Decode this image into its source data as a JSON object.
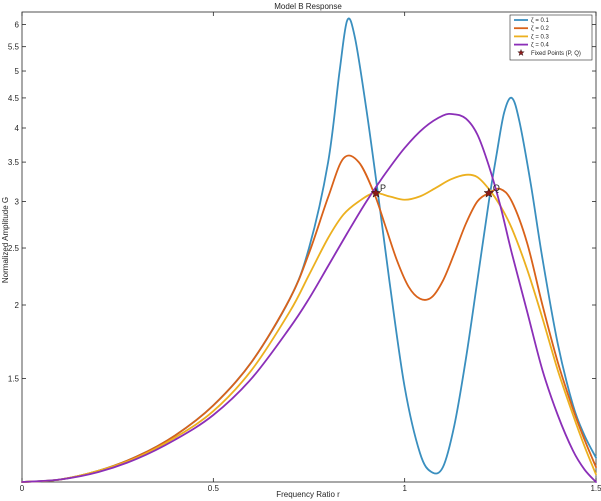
{
  "chart_data": {
    "type": "line",
    "title": "Model B Response",
    "xlabel": "Frequency Ratio r",
    "ylabel": "Normalized Amplitude G",
    "xlim": [
      0,
      1.5
    ],
    "ylim": [
      1,
      6.3
    ],
    "y_scale": "log",
    "x_ticks": [
      0,
      0.5,
      1,
      1.5
    ],
    "x_tick_labels": [
      "0",
      "0.5",
      "1",
      "1.5"
    ],
    "y_ticks": [
      1.5,
      2,
      2.5,
      3,
      3.5,
      4,
      4.5,
      5,
      5.5,
      6
    ],
    "y_tick_labels": [
      "1.5",
      "2",
      "2.5",
      "3",
      "3.5",
      "4",
      "4.5",
      "5",
      "5.5",
      "6"
    ],
    "grid": false,
    "legend_position": "top-right",
    "series": [
      {
        "name": "ζ = 0.1",
        "color": "#3a8fbf",
        "x": [
          0,
          0.1,
          0.2,
          0.3,
          0.4,
          0.5,
          0.6,
          0.7,
          0.75,
          0.8,
          0.83,
          0.85,
          0.87,
          0.9,
          0.93,
          0.96,
          1.0,
          1.04,
          1.07,
          1.1,
          1.13,
          1.16,
          1.19,
          1.22,
          1.24,
          1.26,
          1.28,
          1.3,
          1.33,
          1.36,
          1.4,
          1.44,
          1.47,
          1.5
        ],
        "y": [
          1.0,
          1.01,
          1.045,
          1.105,
          1.2,
          1.35,
          1.6,
          2.05,
          2.5,
          3.5,
          5.0,
          6.1,
          5.7,
          4.3,
          3.1,
          2.2,
          1.45,
          1.12,
          1.04,
          1.06,
          1.25,
          1.62,
          2.2,
          3.0,
          3.6,
          4.25,
          4.5,
          4.1,
          3.2,
          2.4,
          1.72,
          1.35,
          1.2,
          1.1
        ]
      },
      {
        "name": "ζ = 0.2",
        "color": "#d9621a",
        "x": [
          0,
          0.1,
          0.2,
          0.3,
          0.4,
          0.5,
          0.6,
          0.7,
          0.75,
          0.8,
          0.84,
          0.88,
          0.92,
          0.95,
          0.98,
          1.01,
          1.04,
          1.07,
          1.1,
          1.13,
          1.16,
          1.19,
          1.22,
          1.25,
          1.28,
          1.32,
          1.36,
          1.4,
          1.44,
          1.47,
          1.5
        ],
        "y": [
          1.0,
          1.01,
          1.045,
          1.105,
          1.2,
          1.35,
          1.6,
          2.05,
          2.45,
          3.05,
          3.55,
          3.5,
          3.1,
          2.72,
          2.38,
          2.15,
          2.05,
          2.06,
          2.2,
          2.45,
          2.75,
          3.0,
          3.1,
          3.15,
          3.0,
          2.55,
          2.0,
          1.6,
          1.33,
          1.18,
          1.06
        ]
      },
      {
        "name": "ζ = 0.3",
        "color": "#ecb01f",
        "x": [
          0,
          0.1,
          0.2,
          0.3,
          0.4,
          0.5,
          0.6,
          0.7,
          0.75,
          0.8,
          0.84,
          0.88,
          0.92,
          0.96,
          1.0,
          1.04,
          1.08,
          1.12,
          1.16,
          1.19,
          1.22,
          1.25,
          1.28,
          1.32,
          1.36,
          1.4,
          1.44,
          1.47,
          1.5
        ],
        "y": [
          1.0,
          1.01,
          1.045,
          1.1,
          1.19,
          1.32,
          1.55,
          1.95,
          2.25,
          2.6,
          2.85,
          3.0,
          3.1,
          3.06,
          3.02,
          3.06,
          3.16,
          3.27,
          3.33,
          3.3,
          3.15,
          2.95,
          2.7,
          2.3,
          1.9,
          1.55,
          1.3,
          1.15,
          1.03
        ]
      },
      {
        "name": "ζ = 0.4",
        "color": "#8b2fb8",
        "x": [
          0,
          0.1,
          0.2,
          0.3,
          0.4,
          0.5,
          0.6,
          0.7,
          0.75,
          0.8,
          0.85,
          0.9,
          0.95,
          1.0,
          1.05,
          1.1,
          1.13,
          1.16,
          1.19,
          1.22,
          1.25,
          1.28,
          1.32,
          1.36,
          1.4,
          1.44,
          1.47,
          1.5
        ],
        "y": [
          1.0,
          1.01,
          1.04,
          1.095,
          1.18,
          1.3,
          1.5,
          1.83,
          2.05,
          2.33,
          2.65,
          3.0,
          3.35,
          3.7,
          4.0,
          4.2,
          4.22,
          4.15,
          3.9,
          3.45,
          2.95,
          2.45,
          1.95,
          1.55,
          1.3,
          1.13,
          1.05,
          1.0
        ]
      }
    ],
    "fixed_points": {
      "name": "Fixed Points (P, Q)",
      "color": "#8b1a1a",
      "points": [
        {
          "label": "P",
          "x": 0.925,
          "y": 3.1
        },
        {
          "label": "Q",
          "x": 1.22,
          "y": 3.1
        }
      ]
    }
  }
}
